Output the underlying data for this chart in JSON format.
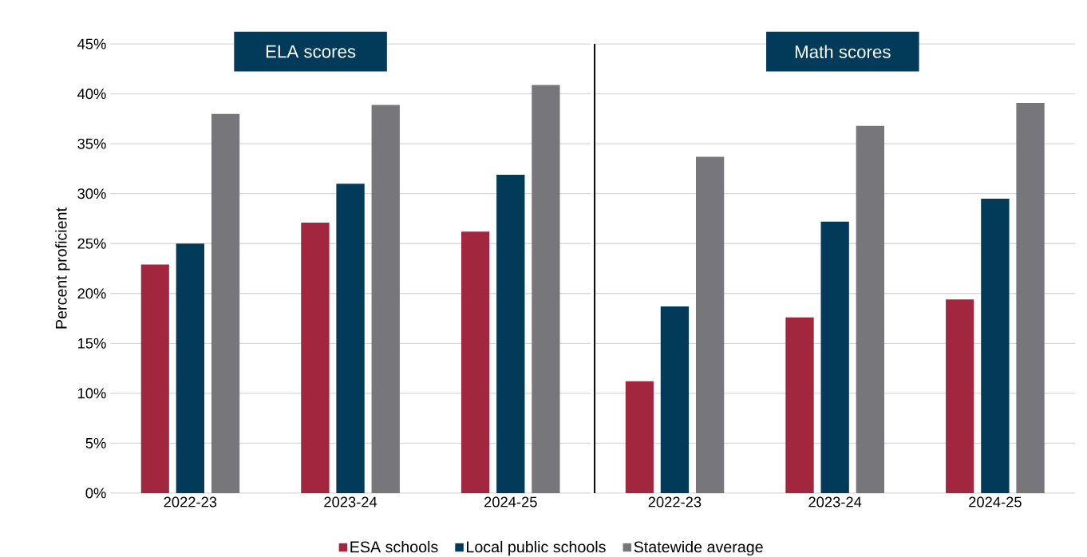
{
  "chart_data": [
    {
      "type": "bar",
      "title": "ELA scores",
      "ylabel": "Percent proficient",
      "categories": [
        "2022-23",
        "2023-24",
        "2024-25"
      ],
      "series": [
        {
          "name": "ESA schools",
          "color": "#a3263f",
          "values": [
            22.9,
            27.1,
            26.2
          ]
        },
        {
          "name": "Local public schools",
          "color": "#023a5a",
          "values": [
            25.0,
            31.0,
            31.9
          ]
        },
        {
          "name": "Statewide average",
          "color": "#77777b",
          "values": [
            38.0,
            38.9,
            40.9
          ]
        }
      ],
      "ylim": [
        0,
        45
      ],
      "yticks": [
        {
          "value": 0,
          "label": "0%"
        },
        {
          "value": 5,
          "label": "5%"
        },
        {
          "value": 10,
          "label": "10%"
        },
        {
          "value": 15,
          "label": "15%"
        },
        {
          "value": 20,
          "label": "20%"
        },
        {
          "value": 25,
          "label": "25%"
        },
        {
          "value": 30,
          "label": "30%"
        },
        {
          "value": 35,
          "label": "35%"
        },
        {
          "value": 40,
          "label": "40%"
        },
        {
          "value": 45,
          "label": "45%"
        }
      ],
      "grid": "y",
      "legend": "bottom"
    },
    {
      "type": "bar",
      "title": "Math scores",
      "categories": [
        "2022-23",
        "2023-24",
        "2024-25"
      ],
      "series": [
        {
          "color": "#a3263f",
          "values": [
            11.2,
            17.6,
            19.4
          ]
        },
        {
          "color": "#023a5a",
          "values": [
            18.7,
            27.2,
            29.5
          ]
        },
        {
          "color": "#77777b",
          "values": [
            33.7,
            36.8,
            39.1
          ]
        }
      ],
      "ylim": [
        0,
        45
      ],
      "grid": "y",
      "tick_labels": "x"
    }
  ]
}
